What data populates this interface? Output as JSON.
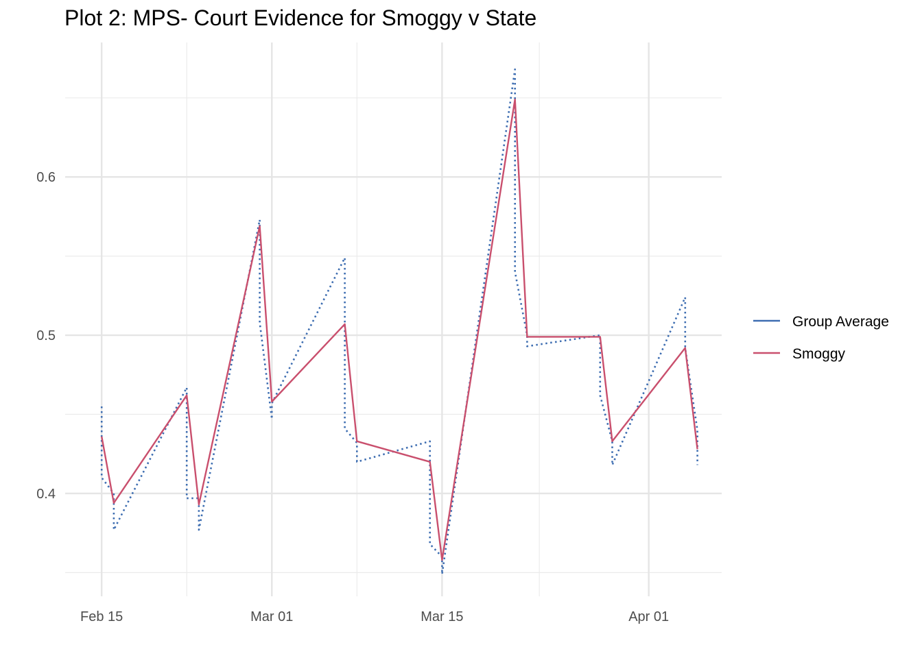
{
  "chart_data": {
    "type": "line",
    "title": "Plot 2: MPS- Court Evidence for Smoggy v State",
    "xlabel": "",
    "ylabel": "",
    "x_ticks": [
      "Feb 15",
      "Mar 01",
      "Mar 15",
      "Apr 01"
    ],
    "x_tick_dates": [
      "2021-02-15",
      "2021-03-01",
      "2021-03-15",
      "2021-04-01"
    ],
    "x_minor_tick_dates": [
      "2021-02-22",
      "2021-03-08",
      "2021-03-23"
    ],
    "y_ticks": [
      "0.4",
      "0.5",
      "0.6"
    ],
    "y_tick_values": [
      0.4,
      0.5,
      0.6
    ],
    "y_minor_tick_values": [
      0.35,
      0.45,
      0.55,
      0.65
    ],
    "xlim": [
      "2021-02-12",
      "2021-04-07"
    ],
    "ylim": [
      0.335,
      0.685
    ],
    "grid": true,
    "legend_position": "right",
    "series": [
      {
        "name": "Group Average",
        "color": "#3d6db1",
        "dash": "dotted",
        "points": [
          [
            "2021-02-15",
            0.455
          ],
          [
            "2021-02-15",
            0.41
          ],
          [
            "2021-02-16",
            0.4
          ],
          [
            "2021-02-16",
            0.377
          ],
          [
            "2021-02-22",
            0.467
          ],
          [
            "2021-02-22",
            0.397
          ],
          [
            "2021-02-23",
            0.397
          ],
          [
            "2021-02-23",
            0.377
          ],
          [
            "2021-02-28",
            0.573
          ],
          [
            "2021-02-28",
            0.508
          ],
          [
            "2021-03-01",
            0.447
          ],
          [
            "2021-03-01",
            0.457
          ],
          [
            "2021-03-07",
            0.549
          ],
          [
            "2021-03-07",
            0.441
          ],
          [
            "2021-03-08",
            0.432
          ],
          [
            "2021-03-08",
            0.42
          ],
          [
            "2021-03-14",
            0.433
          ],
          [
            "2021-03-14",
            0.368
          ],
          [
            "2021-03-15",
            0.36
          ],
          [
            "2021-03-15",
            0.349
          ],
          [
            "2021-03-21",
            0.668
          ],
          [
            "2021-03-21",
            0.54
          ],
          [
            "2021-03-22",
            0.5
          ],
          [
            "2021-03-22",
            0.493
          ],
          [
            "2021-03-28",
            0.5
          ],
          [
            "2021-03-28",
            0.462
          ],
          [
            "2021-03-29",
            0.433
          ],
          [
            "2021-03-29",
            0.418
          ],
          [
            "2021-04-04",
            0.524
          ],
          [
            "2021-04-04",
            0.492
          ],
          [
            "2021-04-05",
            0.44
          ],
          [
            "2021-04-05",
            0.418
          ]
        ]
      },
      {
        "name": "Smoggy",
        "color": "#c94f6d",
        "dash": "solid",
        "points": [
          [
            "2021-02-15",
            0.436
          ],
          [
            "2021-02-16",
            0.394
          ],
          [
            "2021-02-22",
            0.462
          ],
          [
            "2021-02-23",
            0.393
          ],
          [
            "2021-02-28",
            0.569
          ],
          [
            "2021-03-01",
            0.458
          ],
          [
            "2021-03-07",
            0.507
          ],
          [
            "2021-03-08",
            0.433
          ],
          [
            "2021-03-14",
            0.42
          ],
          [
            "2021-03-15",
            0.358
          ],
          [
            "2021-03-21",
            0.649
          ],
          [
            "2021-03-22",
            0.499
          ],
          [
            "2021-03-28",
            0.499
          ],
          [
            "2021-03-29",
            0.433
          ],
          [
            "2021-04-04",
            0.492
          ],
          [
            "2021-04-05",
            0.428
          ]
        ]
      }
    ]
  }
}
